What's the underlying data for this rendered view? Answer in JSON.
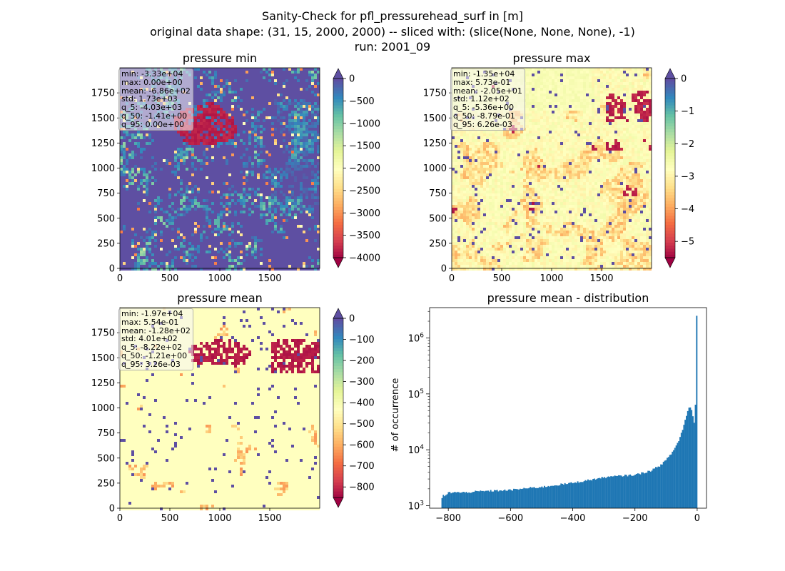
{
  "figure": {
    "title_lines": [
      "Sanity-Check for pfl_pressurehead_surf in [m]",
      "original data shape: (31, 15, 2000, 2000) -- sliced with: (slice(None, None, None), -1)",
      "run: 2001_09"
    ]
  },
  "chart_data": [
    {
      "type": "heatmap",
      "title": "pressure min",
      "colormap": "Spectral",
      "xlim": [
        0,
        2000
      ],
      "ylim": [
        0,
        2000
      ],
      "xticks": [
        0,
        500,
        1000,
        1500
      ],
      "yticks": [
        0,
        250,
        500,
        750,
        1000,
        1250,
        1500,
        1750
      ],
      "colorbar": {
        "range": [
          -4000,
          0
        ],
        "ticks": [
          0,
          -500,
          -1000,
          -1500,
          -2000,
          -2500,
          -3000,
          -3500,
          -4000
        ],
        "extend": "both",
        "over_color": "#5e4fa2",
        "under_color": "#9e0142"
      },
      "stats": [
        "min: -3.33e+04",
        "max: 0.00e+00",
        "mean: -6.86e+02",
        "std: 1.73e+03",
        "q_5: -4.03e+03",
        "q_50: -1.41e+00",
        "q_95: 0.00e+00"
      ]
    },
    {
      "type": "heatmap",
      "title": "pressure max",
      "colormap": "Spectral",
      "xlim": [
        0,
        2000
      ],
      "ylim": [
        0,
        2000
      ],
      "xticks": [
        0,
        500,
        1000,
        1500
      ],
      "yticks": [
        0,
        250,
        500,
        750,
        1000,
        1250,
        1500,
        1750
      ],
      "colorbar": {
        "range": [
          -5.5,
          0
        ],
        "ticks": [
          0,
          -1,
          -2,
          -3,
          -4,
          -5
        ],
        "extend": "both",
        "over_color": "#5e4fa2",
        "under_color": "#9e0142"
      },
      "stats": [
        "min: -1.35e+04",
        "max: 5.73e-01",
        "mean: -2.05e+01",
        "std: 1.12e+02",
        "q_5: -5.36e+00",
        "q_50: -8.79e-01",
        "q_95: 6.26e-03"
      ]
    },
    {
      "type": "heatmap",
      "title": "pressure mean",
      "colormap": "Spectral",
      "xlim": [
        0,
        2000
      ],
      "ylim": [
        0,
        2000
      ],
      "xticks": [
        0,
        500,
        1000,
        1500
      ],
      "yticks": [
        0,
        250,
        500,
        750,
        1000,
        1250,
        1500,
        1750
      ],
      "colorbar": {
        "range": [
          -850,
          0
        ],
        "ticks": [
          0,
          -100,
          -200,
          -300,
          -400,
          -500,
          -600,
          -700,
          -800
        ],
        "extend": "both",
        "over_color": "#5e4fa2",
        "under_color": "#9e0142"
      },
      "stats": [
        "min: -1.97e+04",
        "max: 5.54e-01",
        "mean: -1.28e+02",
        "std: 4.01e+02",
        "q_5: -8.22e+02",
        "q_50: -1.21e+00",
        "q_95: 3.26e-03"
      ]
    },
    {
      "type": "bar",
      "title": "pressure mean - distribution",
      "xlabel": "",
      "ylabel": "# of occurrence",
      "yscale": "log",
      "xlim": [
        -860,
        30
      ],
      "ylim": [
        900,
        3500000
      ],
      "xticks": [
        -800,
        -600,
        -400,
        -200,
        0
      ],
      "xticklabels": [
        "−800",
        "−600",
        "−400",
        "−200",
        "0"
      ],
      "yticks": [
        1000,
        10000,
        100000,
        1000000
      ],
      "bar_color": "#1f77b4",
      "bin_range": [
        -822,
        0.55
      ],
      "bins": 200,
      "profile_points": [
        [
          -822,
          1500
        ],
        [
          -818,
          1300
        ],
        [
          -815,
          1600
        ],
        [
          -810,
          1450
        ],
        [
          -800,
          1700
        ],
        [
          -780,
          1750
        ],
        [
          -760,
          1700
        ],
        [
          -700,
          1800
        ],
        [
          -650,
          1850
        ],
        [
          -600,
          1900
        ],
        [
          -550,
          2050
        ],
        [
          -500,
          2150
        ],
        [
          -450,
          2350
        ],
        [
          -400,
          2550
        ],
        [
          -350,
          2850
        ],
        [
          -300,
          3200
        ],
        [
          -250,
          3400
        ],
        [
          -200,
          3550
        ],
        [
          -150,
          4200
        ],
        [
          -120,
          5200
        ],
        [
          -100,
          6500
        ],
        [
          -80,
          9000
        ],
        [
          -60,
          14000
        ],
        [
          -45,
          25000
        ],
        [
          -35,
          40000
        ],
        [
          -25,
          60000
        ],
        [
          -20,
          55000
        ],
        [
          -15,
          45000
        ],
        [
          -10,
          30000
        ],
        [
          -5,
          70000
        ],
        [
          0,
          2500000
        ]
      ]
    }
  ]
}
